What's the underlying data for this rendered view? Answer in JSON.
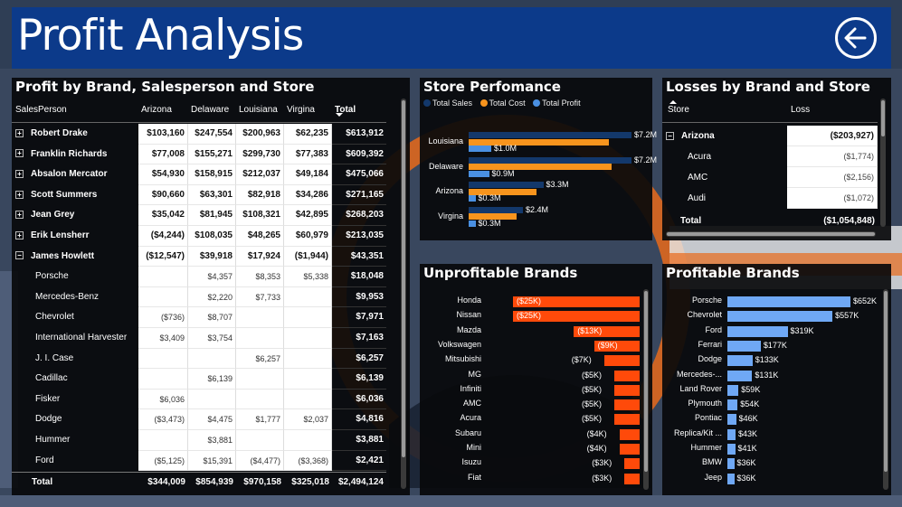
{
  "header": {
    "title": "Profit Analysis"
  },
  "matrix": {
    "title": "Profit by Brand, Salesperson and Store",
    "columns": [
      "SalesPerson",
      "Arizona",
      "Delaware",
      "Louisiana",
      "Virgina",
      "Total"
    ],
    "rows": [
      {
        "name": "Robert Drake",
        "level": 0,
        "values": [
          "$103,160",
          "$247,554",
          "$200,963",
          "$62,235",
          "$613,912"
        ]
      },
      {
        "name": "Franklin Richards",
        "level": 0,
        "values": [
          "$77,008",
          "$155,271",
          "$299,730",
          "$77,383",
          "$609,392"
        ]
      },
      {
        "name": "Absalon Mercator",
        "level": 0,
        "values": [
          "$54,930",
          "$158,915",
          "$212,037",
          "$49,184",
          "$475,066"
        ]
      },
      {
        "name": "Scott Summers",
        "level": 0,
        "values": [
          "$90,660",
          "$63,301",
          "$82,918",
          "$34,286",
          "$271,165"
        ]
      },
      {
        "name": "Jean Grey",
        "level": 0,
        "values": [
          "$35,042",
          "$81,945",
          "$108,321",
          "$42,895",
          "$268,203"
        ]
      },
      {
        "name": "Erik Lensherr",
        "level": 0,
        "values": [
          "($4,244)",
          "$108,035",
          "$48,265",
          "$60,979",
          "$213,035"
        ]
      },
      {
        "name": "James Howlett",
        "level": 0,
        "expanded": true,
        "values": [
          "($12,547)",
          "$39,918",
          "$17,924",
          "($1,944)",
          "$43,351"
        ]
      },
      {
        "name": "Porsche",
        "level": 1,
        "values": [
          "",
          "$4,357",
          "$8,353",
          "$5,338",
          "$18,048"
        ]
      },
      {
        "name": "Mercedes-Benz",
        "level": 1,
        "values": [
          "",
          "$2,220",
          "$7,733",
          "",
          "$9,953"
        ]
      },
      {
        "name": "Chevrolet",
        "level": 1,
        "values": [
          "($736)",
          "$8,707",
          "",
          "",
          "$7,971"
        ]
      },
      {
        "name": "International Harvester",
        "level": 1,
        "values": [
          "$3,409",
          "$3,754",
          "",
          "",
          "$7,163"
        ]
      },
      {
        "name": "J. I. Case",
        "level": 1,
        "values": [
          "",
          "",
          "$6,257",
          "",
          "$6,257"
        ]
      },
      {
        "name": "Cadillac",
        "level": 1,
        "values": [
          "",
          "$6,139",
          "",
          "",
          "$6,139"
        ]
      },
      {
        "name": "Fisker",
        "level": 1,
        "values": [
          "$6,036",
          "",
          "",
          "",
          "$6,036"
        ]
      },
      {
        "name": "Dodge",
        "level": 1,
        "values": [
          "($3,473)",
          "$4,475",
          "$1,777",
          "$2,037",
          "$4,816"
        ]
      },
      {
        "name": "Hummer",
        "level": 1,
        "values": [
          "",
          "$3,881",
          "",
          "",
          "$3,881"
        ]
      },
      {
        "name": "Ford",
        "level": 1,
        "values": [
          "($5,125)",
          "$15,391",
          "($4,477)",
          "($3,368)",
          "$2,421"
        ]
      }
    ],
    "total": {
      "name": "Total",
      "values": [
        "$344,009",
        "$854,939",
        "$970,158",
        "$325,018",
        "$2,494,124"
      ]
    }
  },
  "store_performance": {
    "title": "Store Perfomance",
    "legend": [
      {
        "name": "Total Sales",
        "color": "#13386b"
      },
      {
        "name": "Total Cost",
        "color": "#f7941d"
      },
      {
        "name": "Total Profit",
        "color": "#4a90e2"
      }
    ],
    "chart_data": {
      "type": "bar",
      "categories": [
        "Louisiana",
        "Delaware",
        "Arizona",
        "Virgina"
      ],
      "series": [
        {
          "name": "Total Sales",
          "values": [
            7.2,
            7.2,
            3.3,
            2.4
          ],
          "labels": [
            "$7.2M",
            "$7.2M",
            "$3.3M",
            "$2.4M"
          ]
        },
        {
          "name": "Total Cost",
          "values": [
            6.2,
            6.3,
            3.0,
            2.1
          ],
          "labels": [
            "",
            "",
            "",
            ""
          ]
        },
        {
          "name": "Total Profit",
          "values": [
            1.0,
            0.9,
            0.3,
            0.3
          ],
          "labels": [
            "$1.0M",
            "$0.9M",
            "$0.3M",
            "$0.3M"
          ]
        }
      ]
    }
  },
  "losses": {
    "title": "Losses by Brand and Store",
    "columns": [
      "Store",
      "Loss"
    ],
    "rows": [
      {
        "name": "Arizona",
        "level": 0,
        "value": "($203,927)"
      },
      {
        "name": "Acura",
        "level": 1,
        "value": "($1,774)"
      },
      {
        "name": "AMC",
        "level": 1,
        "value": "($2,156)"
      },
      {
        "name": "Audi",
        "level": 1,
        "value": "($1,072)"
      }
    ],
    "total": {
      "name": "Total",
      "value": "($1,054,848)"
    }
  },
  "unprofitable": {
    "title": "Unprofitable Brands",
    "color": "#ff4a0a",
    "chart_data": {
      "type": "bar",
      "categories": [
        "Honda",
        "Nissan",
        "Mazda",
        "Volkswagen",
        "Mitsubishi",
        "MG",
        "Infiniti",
        "AMC",
        "Acura",
        "Subaru",
        "Mini",
        "Isuzu",
        "Fiat"
      ],
      "values": [
        -25,
        -25,
        -13,
        -9,
        -7,
        -5,
        -5,
        -5,
        -5,
        -4,
        -4,
        -3,
        -3
      ],
      "labels": [
        "($25K)",
        "($25K)",
        "($13K)",
        "($9K)",
        "($7K)",
        "($5K)",
        "($5K)",
        "($5K)",
        "($5K)",
        "($4K)",
        "($4K)",
        "($3K)",
        "($3K)"
      ]
    }
  },
  "profitable": {
    "title": "Profitable Brands",
    "color": "#6fa8f5",
    "chart_data": {
      "type": "bar",
      "categories": [
        "Porsche",
        "Chevrolet",
        "Ford",
        "Ferrari",
        "Dodge",
        "Mercedes-...",
        "Land Rover",
        "Plymouth",
        "Pontiac",
        "Replica/Kit ...",
        "Hummer",
        "BMW",
        "Jeep"
      ],
      "values": [
        652,
        557,
        319,
        177,
        133,
        131,
        59,
        54,
        46,
        43,
        41,
        36,
        36
      ],
      "labels": [
        "$652K",
        "$557K",
        "$319K",
        "$177K",
        "$133K",
        "$131K",
        "$59K",
        "$54K",
        "$46K",
        "$43K",
        "$41K",
        "$36K",
        "$36K"
      ]
    }
  }
}
